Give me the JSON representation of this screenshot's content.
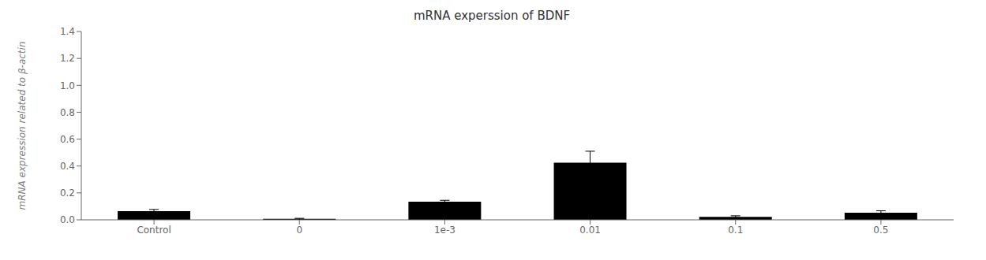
{
  "chart_data": {
    "type": "bar",
    "title": "mRNA experssion of BDNF",
    "ylabel": "mRNA expression related to β-actin",
    "categories": [
      "Control",
      "0",
      "1e-3",
      "0.01",
      "0.1",
      "0.5"
    ],
    "values": [
      0.065,
      0.008,
      0.135,
      0.425,
      0.022,
      0.052
    ],
    "errors": [
      0.012,
      0.003,
      0.01,
      0.085,
      0.008,
      0.015
    ],
    "color": "#000000",
    "ylim": [
      0,
      1.4
    ],
    "yticks": [
      {
        "value": 0,
        "label": "0.0"
      },
      0.2,
      0.4,
      0.6,
      0.8,
      {
        "value": 1,
        "label": "1.0"
      },
      1.2,
      1.4
    ],
    "grid": false
  }
}
